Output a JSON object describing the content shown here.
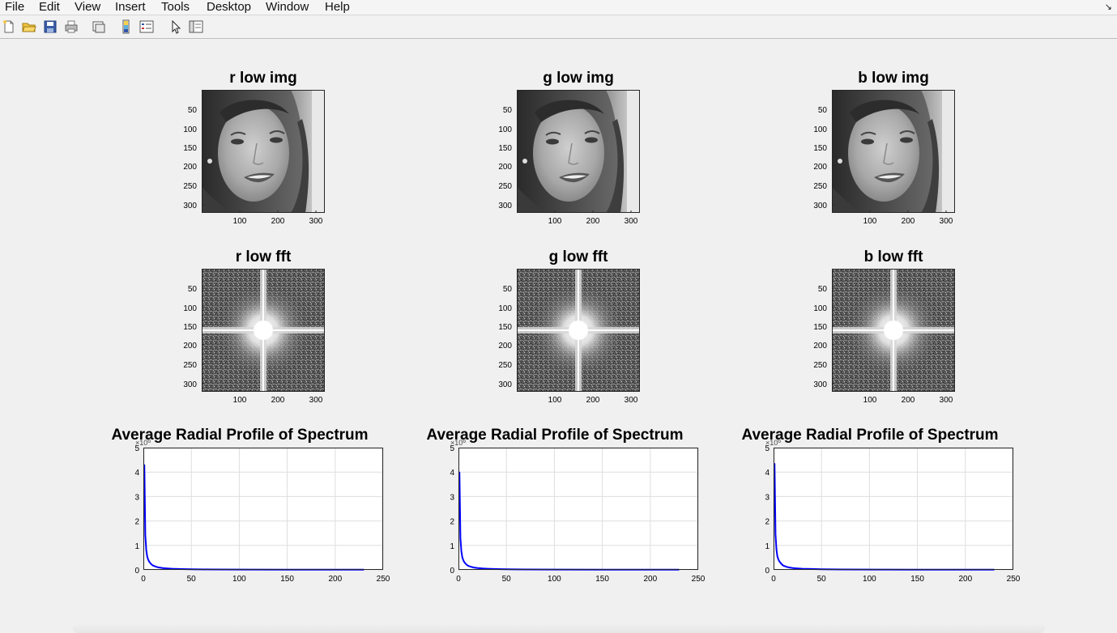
{
  "menu": {
    "items": [
      "File",
      "Edit",
      "View",
      "Insert",
      "Tools",
      "Desktop",
      "Window",
      "Help"
    ]
  },
  "toolbar": {
    "buttons": [
      "new-figure-icon",
      "open-file-icon",
      "save-icon",
      "print-icon",
      "link-icon",
      "colorbar-icon",
      "legend-icon",
      "edit-plot-arrow-icon",
      "property-inspector-icon"
    ]
  },
  "colors": {
    "line": "#0000ff",
    "axes_bg": "#ffffff",
    "figure_bg": "#f0f0f0"
  },
  "image_panels": [
    {
      "title": "r low img",
      "kind": "photo"
    },
    {
      "title": "g low img",
      "kind": "photo"
    },
    {
      "title": "b low img",
      "kind": "photo"
    },
    {
      "title": "r low fft",
      "kind": "spectrum"
    },
    {
      "title": "g low fft",
      "kind": "spectrum"
    },
    {
      "title": "b low fft",
      "kind": "spectrum"
    }
  ],
  "image_axes": {
    "yticks": [
      "50",
      "100",
      "150",
      "200",
      "250",
      "300"
    ],
    "xticks": [
      "100",
      "200",
      "300"
    ]
  },
  "chart_data": [
    {
      "type": "line",
      "title": "Average Radial Profile of Spectrum",
      "exponent_label": "×10",
      "exponent": "6",
      "xlim": [
        0,
        250
      ],
      "ylim": [
        0,
        5
      ],
      "xticks": [
        "0",
        "50",
        "100",
        "150",
        "200",
        "250"
      ],
      "yticks": [
        "0",
        "1",
        "2",
        "3",
        "4",
        "5"
      ],
      "grid": true,
      "x": [
        1,
        2,
        3,
        4,
        5,
        6,
        8,
        10,
        13,
        16,
        20,
        25,
        30,
        40,
        50,
        70,
        100,
        150,
        200,
        230
      ],
      "y": [
        4.3,
        1.4,
        0.8,
        0.55,
        0.42,
        0.34,
        0.24,
        0.18,
        0.13,
        0.1,
        0.075,
        0.058,
        0.047,
        0.034,
        0.026,
        0.018,
        0.012,
        0.008,
        0.006,
        0.005
      ]
    },
    {
      "type": "line",
      "title": "Average Radial Profile of Spectrum",
      "exponent_label": "×10",
      "exponent": "6",
      "xlim": [
        0,
        250
      ],
      "ylim": [
        0,
        5
      ],
      "xticks": [
        "0",
        "50",
        "100",
        "150",
        "200",
        "250"
      ],
      "yticks": [
        "0",
        "1",
        "2",
        "3",
        "4",
        "5"
      ],
      "grid": true,
      "x": [
        1,
        2,
        3,
        4,
        5,
        6,
        8,
        10,
        13,
        16,
        20,
        25,
        30,
        40,
        50,
        70,
        100,
        150,
        200,
        230
      ],
      "y": [
        4.0,
        1.3,
        0.75,
        0.52,
        0.4,
        0.32,
        0.23,
        0.17,
        0.125,
        0.095,
        0.072,
        0.056,
        0.045,
        0.033,
        0.025,
        0.017,
        0.012,
        0.008,
        0.006,
        0.005
      ]
    },
    {
      "type": "line",
      "title": "Average Radial Profile of Spectrum",
      "exponent_label": "×10",
      "exponent": "6",
      "xlim": [
        0,
        250
      ],
      "ylim": [
        0,
        5
      ],
      "xticks": [
        "0",
        "50",
        "100",
        "150",
        "200",
        "250"
      ],
      "yticks": [
        "0",
        "1",
        "2",
        "3",
        "4",
        "5"
      ],
      "grid": true,
      "x": [
        1,
        2,
        3,
        4,
        5,
        6,
        8,
        10,
        13,
        16,
        20,
        25,
        30,
        40,
        50,
        70,
        100,
        150,
        200,
        230
      ],
      "y": [
        4.35,
        1.45,
        0.82,
        0.56,
        0.43,
        0.35,
        0.25,
        0.18,
        0.13,
        0.1,
        0.076,
        0.059,
        0.048,
        0.035,
        0.026,
        0.018,
        0.012,
        0.008,
        0.006,
        0.005
      ]
    }
  ]
}
